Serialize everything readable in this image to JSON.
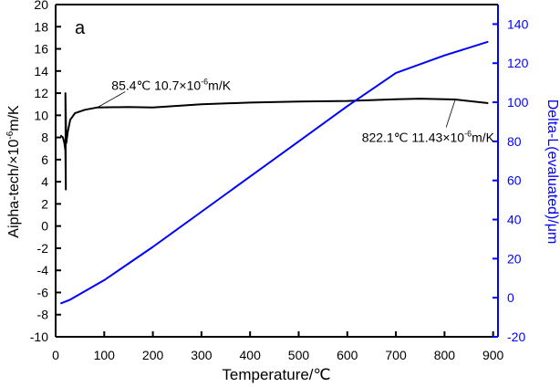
{
  "chart_data": {
    "type": "line",
    "panel_label": "a",
    "xlabel": "Temperature/℃",
    "ylabel_left": {
      "main": "Aipha-tech/×10",
      "sup": "-6",
      "tail": "m/K"
    },
    "ylabel_right": "Delta-L(evaluated)/μm",
    "xlim": [
      0,
      910
    ],
    "ylim_left": [
      -10,
      20
    ],
    "ylim_right": [
      -20,
      150
    ],
    "xticks": [
      0,
      100,
      200,
      300,
      400,
      500,
      600,
      700,
      800,
      900
    ],
    "yticks_left": [
      -10,
      -8,
      -6,
      -4,
      -2,
      0,
      2,
      4,
      6,
      8,
      10,
      12,
      14,
      16,
      18,
      20
    ],
    "yticks_right": [
      -20,
      0,
      20,
      40,
      60,
      80,
      100,
      120,
      140
    ],
    "grid": false,
    "colors": {
      "alpha": "#000000",
      "delta": "#0000ff"
    },
    "series": [
      {
        "name": "Alpha-tech",
        "axis": "left",
        "x": [
          10,
          15,
          18,
          20,
          21,
          20,
          22,
          25,
          30,
          40,
          60,
          85,
          150,
          200,
          300,
          400,
          500,
          600,
          700,
          750,
          822,
          890
        ],
        "y": [
          8.2,
          8.0,
          7.5,
          6.8,
          3.3,
          12.0,
          7.5,
          8.5,
          9.6,
          10.2,
          10.5,
          10.7,
          10.75,
          10.7,
          11.0,
          11.15,
          11.25,
          11.3,
          11.45,
          11.5,
          11.43,
          11.1
        ]
      },
      {
        "name": "Delta-L(evaluated)",
        "axis": "right",
        "x": [
          10,
          30,
          100,
          200,
          300,
          400,
          500,
          600,
          700,
          800,
          890
        ],
        "y": [
          -3,
          -1,
          9,
          26,
          44,
          62,
          80,
          98,
          115,
          124,
          131
        ]
      }
    ],
    "annotations": [
      {
        "parts": [
          "85.4℃ 10.7×10",
          "-6",
          "m/K"
        ],
        "point": [
          85.4,
          10.7
        ],
        "text_at": [
          115,
          12.3
        ]
      },
      {
        "parts": [
          "822.1℃ 11.43×10",
          "-6",
          "m/K"
        ],
        "point": [
          822.1,
          11.43
        ],
        "text_at": [
          700,
          7.6
        ]
      }
    ]
  }
}
